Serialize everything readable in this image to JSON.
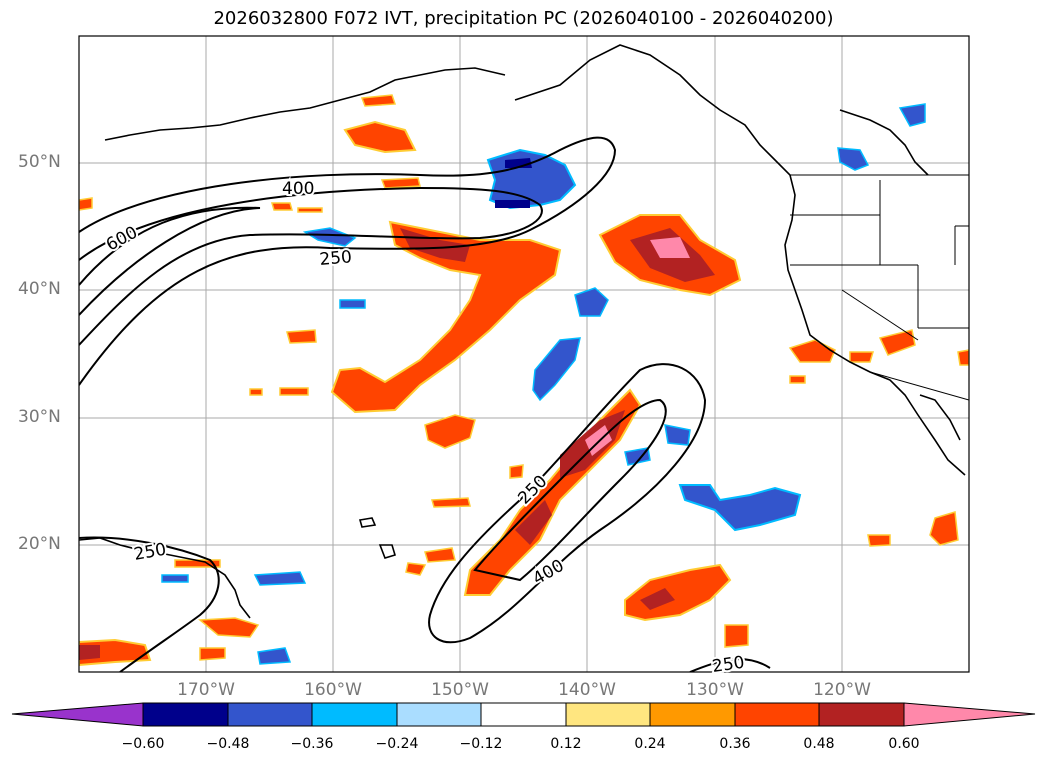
{
  "title": "2026032800 F072 IVT, precipitation PC (2026040100 - 2026040200)",
  "latitude_labels": [
    "50°N",
    "40°N",
    "30°N",
    "20°N"
  ],
  "longitude_labels": [
    "170°W",
    "160°W",
    "150°W",
    "140°W",
    "130°W",
    "120°W"
  ],
  "contour_labels": [
    "400",
    "600",
    "250",
    "250",
    "400",
    "250",
    "250"
  ],
  "colorbar": {
    "ticks": [
      "−0.60",
      "−0.48",
      "−0.36",
      "−0.24",
      "−0.12",
      "0.12",
      "0.24",
      "0.36",
      "0.48",
      "0.60"
    ],
    "colors": [
      "#9933cc",
      "#00008b",
      "#3355cc",
      "#00bbff",
      "#aaddff",
      "#ffffff",
      "#ffe680",
      "#ff9900",
      "#ff4400",
      "#b22222",
      "#ff88aa"
    ]
  }
}
